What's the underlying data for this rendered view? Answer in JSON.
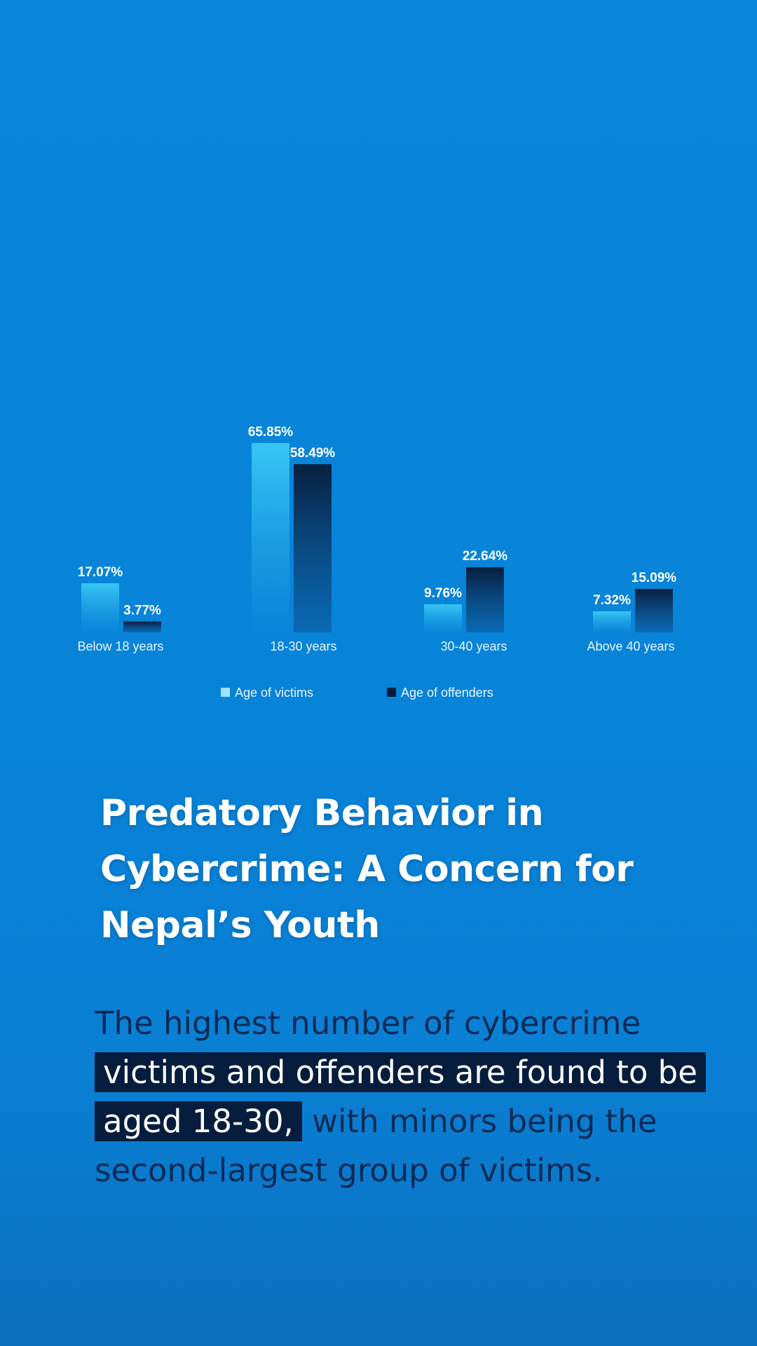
{
  "chart_data": {
    "type": "bar",
    "categories": [
      "Below 18 years",
      "18-30 years",
      "30-40 years",
      "Above 40 years"
    ],
    "series": [
      {
        "name": "Age of victims",
        "values": [
          17.07,
          65.85,
          9.76,
          7.32
        ],
        "labels": [
          "17.07%",
          "65.85%",
          "9.76%",
          "7.32%"
        ]
      },
      {
        "name": "Age of offenders",
        "values": [
          3.77,
          58.49,
          22.64,
          15.09
        ],
        "labels": [
          "3.77%",
          "58.49%",
          "22.64%",
          "15.09%"
        ]
      }
    ],
    "ylim": [
      0,
      65.85
    ],
    "legend_position": "bottom-center",
    "grid": false
  },
  "headline": "Predatory Behavior in Cybercrime: A Concern for Nepal’s Youth",
  "body": {
    "lead": "The highest number of cybercrime",
    "highlight": "victims and offenders are found to be aged 18-30,",
    "rest": "with minors being the second-largest group of victims."
  },
  "colors": {
    "background": "#0783d8",
    "victims_top": "#37c6f4",
    "victims_bottom": "#0a86da",
    "offenders_top": "#081f3f",
    "offenders_bottom": "#0b5fa5",
    "highlight_bg": "#061d3e",
    "body_text": "#0b2a55"
  }
}
